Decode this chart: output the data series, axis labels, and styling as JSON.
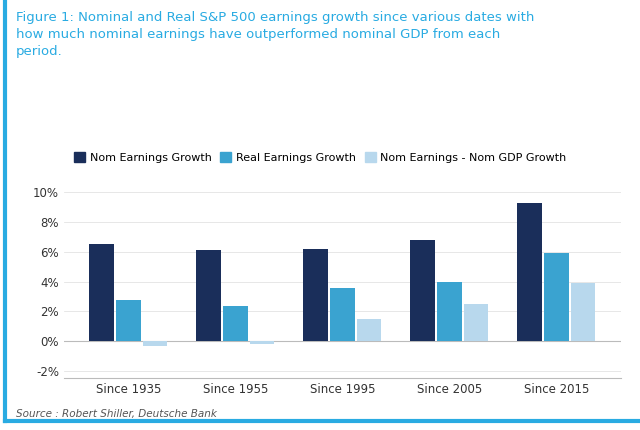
{
  "title_line1": "Figure 1: Nominal and Real S&P 500 earnings growth since various dates with",
  "title_line2": "how much nominal earnings have outperformed nominal GDP from each",
  "title_line3": "period.",
  "categories": [
    "Since 1935",
    "Since 1955",
    "Since 1995",
    "Since 2005",
    "Since 2015"
  ],
  "nom_earnings_growth": [
    6.5,
    6.1,
    6.2,
    6.8,
    9.3
  ],
  "real_earnings_growth": [
    2.8,
    2.35,
    3.6,
    4.0,
    5.9
  ],
  "nom_earnings_minus_gdp": [
    -0.3,
    -0.2,
    1.5,
    2.5,
    3.9
  ],
  "color_nom": "#1a2e5a",
  "color_real": "#3aa3d0",
  "color_diff": "#b8d8ed",
  "legend_labels": [
    "Nom Earnings Growth",
    "Real Earnings Growth",
    "Nom Earnings - Nom GDP Growth"
  ],
  "ylim": [
    -2.5,
    10.5
  ],
  "source": "Source : Robert Shiller, Deutsche Bank",
  "background_color": "#ffffff",
  "border_color": "#29abe2",
  "title_color": "#29abe2"
}
